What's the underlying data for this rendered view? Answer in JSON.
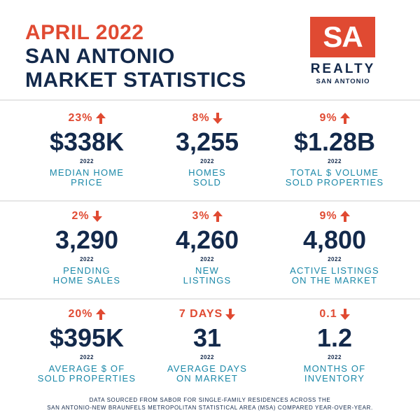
{
  "header": {
    "month": "APRIL 2022",
    "title_line1": "SAN ANTONIO",
    "title_line2": "MARKET STATISTICS"
  },
  "logo": {
    "mark": "SA",
    "name": "REALTY",
    "sub": "SAN ANTONIO"
  },
  "colors": {
    "accent": "#e04a32",
    "navy": "#13294b",
    "teal": "#1b88a8"
  },
  "stats": [
    [
      {
        "change": "23%",
        "direction": "up",
        "value": "$338K",
        "year": "2022",
        "label1": "MEDIAN HOME",
        "label2": "PRICE"
      },
      {
        "change": "8%",
        "direction": "down",
        "value": "3,255",
        "year": "2022",
        "label1": "HOMES",
        "label2": "SOLD"
      },
      {
        "change": "9%",
        "direction": "up",
        "value": "$1.28B",
        "year": "2022",
        "label1": "TOTAL $ VOLUME",
        "label2": "SOLD PROPERTIES"
      }
    ],
    [
      {
        "change": "2%",
        "direction": "down",
        "value": "3,290",
        "year": "2022",
        "label1": "PENDING",
        "label2": "HOME SALES"
      },
      {
        "change": "3%",
        "direction": "up",
        "value": "4,260",
        "year": "2022",
        "label1": "NEW",
        "label2": "LISTINGS"
      },
      {
        "change": "9%",
        "direction": "up",
        "value": "4,800",
        "year": "2022",
        "label1": "ACTIVE LISTINGS",
        "label2": "ON THE MARKET"
      }
    ],
    [
      {
        "change": "20%",
        "direction": "up",
        "value": "$395K",
        "year": "2022",
        "label1": "AVERAGE $ OF",
        "label2": "SOLD PROPERTIES"
      },
      {
        "change": "7 DAYS",
        "direction": "down",
        "value": "31",
        "year": "2022",
        "label1": "AVERAGE DAYS",
        "label2": "ON MARKET"
      },
      {
        "change": "0.1",
        "direction": "down",
        "value": "1.2",
        "year": "2022",
        "label1": "MONTHS OF",
        "label2": "INVENTORY"
      }
    ]
  ],
  "footer": {
    "line1": "DATA SOURCED FROM SABOR FOR SINGLE-FAMILY RESIDENCES ACROSS THE",
    "line2": "SAN ANTONIO-NEW BRAUNFELS METROPOLITAN STATISTICAL AREA (MSA) COMPARED YEAR-OVER-YEAR."
  }
}
